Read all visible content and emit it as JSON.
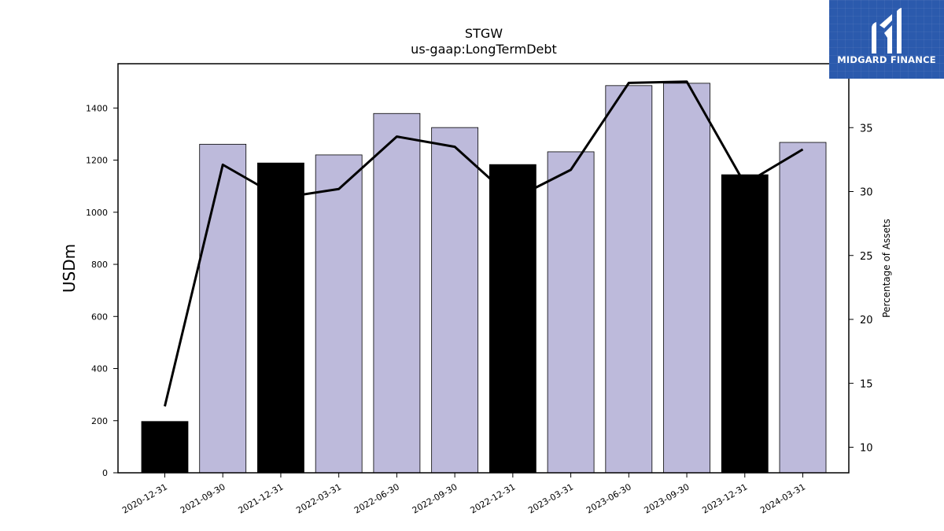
{
  "logo": {
    "text": "MIDGARD FINANCE",
    "icon": "midgard-m-icon",
    "bg_color": "#2b5aad"
  },
  "chart_data": {
    "type": "bar",
    "title": "STGW",
    "subtitle": "us-gaap:LongTermDebt",
    "ylabel": "USDm",
    "y2label": "Percentage of Assets",
    "categories": [
      "2020-12-31",
      "2021-09-30",
      "2021-12-31",
      "2022-03-31",
      "2022-06-30",
      "2022-09-30",
      "2022-12-31",
      "2023-03-31",
      "2023-06-30",
      "2023-09-30",
      "2023-12-31",
      "2024-03-31"
    ],
    "values": [
      197,
      1261,
      1189,
      1220,
      1379,
      1325,
      1183,
      1232,
      1486,
      1495,
      1144,
      1268
    ],
    "bar_colors": [
      "#000000",
      "#bdbadb",
      "#000000",
      "#bdbadb",
      "#bdbadb",
      "#bdbadb",
      "#000000",
      "#bdbadb",
      "#bdbadb",
      "#bdbadb",
      "#000000",
      "#bdbadb"
    ],
    "ylim": [
      0,
      1570
    ],
    "yticks": [
      0,
      200,
      400,
      600,
      800,
      1000,
      1200,
      1400
    ],
    "line_series": {
      "values": [
        13.2,
        32.1,
        29.5,
        30.2,
        34.3,
        33.5,
        29.4,
        31.7,
        38.5,
        38.6,
        30.6,
        33.3
      ],
      "color": "#000000"
    },
    "y2lim": [
      8.0,
      40.0
    ],
    "y2ticks": [
      10,
      15,
      20,
      25,
      30,
      35
    ],
    "grid": false
  }
}
